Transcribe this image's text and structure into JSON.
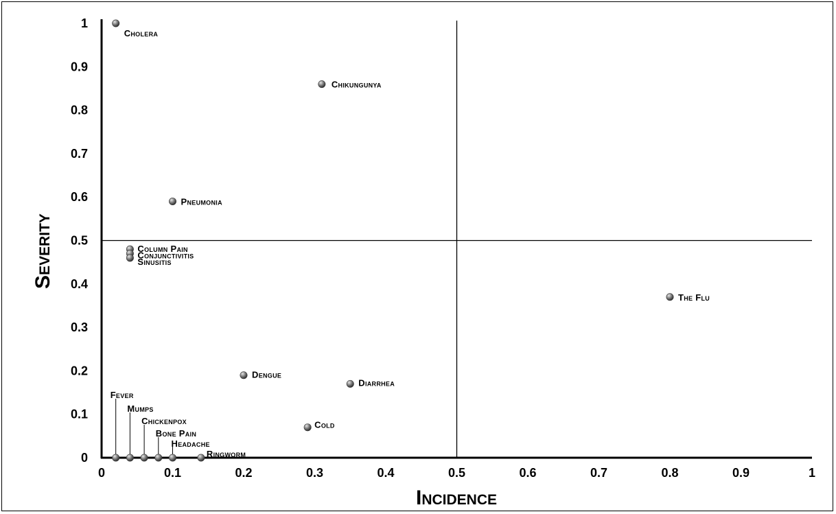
{
  "chart_data": {
    "type": "scatter",
    "title": "",
    "xlabel": "Incidence",
    "ylabel": "Severity",
    "xlim": [
      0,
      1
    ],
    "ylim": [
      0,
      1
    ],
    "xticks": [
      "0",
      "0.1",
      "0.2",
      "0.3",
      "0.4",
      "0.5",
      "0.6",
      "0.7",
      "0.8",
      "0.9",
      "1"
    ],
    "yticks": [
      "0",
      "0.1",
      "0.2",
      "0.3",
      "0.4",
      "0.5",
      "0.6",
      "0.7",
      "0.8",
      "0.9",
      "1"
    ],
    "quadrant_lines": {
      "x": 0.5,
      "y": 0.5
    },
    "grid": false,
    "marker_color": "#6b6b6b",
    "points": [
      {
        "label": "Cholera",
        "x": 0.02,
        "y": 1.0
      },
      {
        "label": "Chikungunya",
        "x": 0.31,
        "y": 0.86
      },
      {
        "label": "Pneumonia",
        "x": 0.1,
        "y": 0.59
      },
      {
        "label": "Column Pain",
        "x": 0.04,
        "y": 0.48
      },
      {
        "label": "Conjunctivitis",
        "x": 0.04,
        "y": 0.47
      },
      {
        "label": "Sinusitis",
        "x": 0.04,
        "y": 0.46
      },
      {
        "label": "The Flu",
        "x": 0.8,
        "y": 0.37
      },
      {
        "label": "Dengue",
        "x": 0.2,
        "y": 0.19
      },
      {
        "label": "Diarrhea",
        "x": 0.35,
        "y": 0.17
      },
      {
        "label": "Cold",
        "x": 0.29,
        "y": 0.07
      },
      {
        "label": "Fever",
        "x": 0.02,
        "y": 0.0
      },
      {
        "label": "Mumps",
        "x": 0.04,
        "y": 0.0
      },
      {
        "label": "Chickenpox",
        "x": 0.06,
        "y": 0.0
      },
      {
        "label": "Bone Pain",
        "x": 0.08,
        "y": 0.0
      },
      {
        "label": "Headache",
        "x": 0.1,
        "y": 0.0
      },
      {
        "label": "Ringworm",
        "x": 0.14,
        "y": 0.0
      }
    ]
  }
}
